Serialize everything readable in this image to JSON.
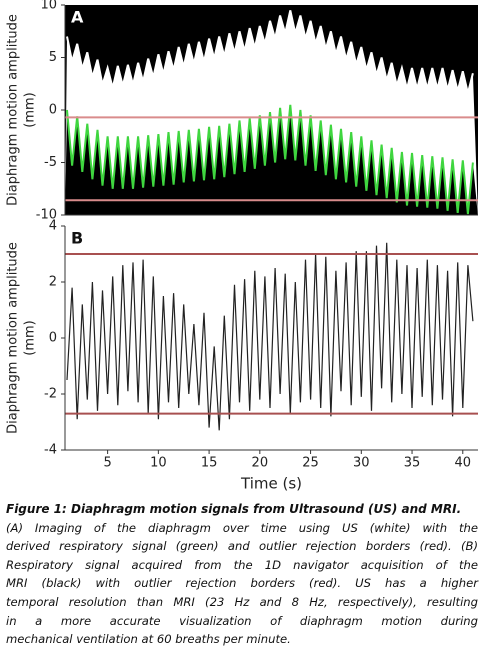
{
  "chart_data": [
    {
      "type": "line",
      "panel_label": "A",
      "ylabel": [
        "Diaphragm motion amplitude",
        "(mm)"
      ],
      "background": "#000000",
      "x": [
        1,
        1.5,
        2,
        2.5,
        3,
        3.5,
        4,
        4.5,
        5,
        5.5,
        6,
        6.5,
        7,
        7.5,
        8,
        8.5,
        9,
        9.5,
        10,
        10.5,
        11,
        11.5,
        12,
        12.5,
        13,
        13.5,
        14,
        14.5,
        15,
        15.5,
        16,
        16.5,
        17,
        17.5,
        18,
        18.5,
        19,
        19.5,
        20,
        20.5,
        21,
        21.5,
        22,
        22.5,
        23,
        23.5,
        24,
        24.5,
        25,
        25.5,
        26,
        26.5,
        27,
        27.5,
        28,
        28.5,
        29,
        29.5,
        30,
        30.5,
        31,
        31.5,
        32,
        32.5,
        33,
        33.5,
        34,
        34.5,
        35,
        35.5,
        36,
        36.5,
        37,
        37.5,
        38,
        38.5,
        39,
        39.5,
        40,
        40.5,
        41
      ],
      "series": [
        {
          "color": "#ffffff",
          "fill": "#ffffff",
          "values": [
            7,
            4.6,
            6.3,
            3.9,
            5.5,
            3.1,
            4.8,
            2.4,
            4,
            2.1,
            4.2,
            2.3,
            4.3,
            2.4,
            4.5,
            2.7,
            4.9,
            3.1,
            5.3,
            3.4,
            5.6,
            3.8,
            6,
            4.1,
            6.3,
            4.4,
            6.5,
            4.6,
            6.8,
            4.9,
            7,
            5.1,
            7.3,
            5.4,
            7.5,
            5.6,
            7.8,
            5.9,
            8,
            6.3,
            8.5,
            6.8,
            9,
            7.3,
            9.5,
            7.3,
            9,
            6.8,
            8.5,
            6.3,
            8,
            5.8,
            7.5,
            5.3,
            7,
            4.8,
            6.5,
            4.3,
            6,
            3.8,
            5.5,
            3.3,
            5,
            2.8,
            4.5,
            2.3,
            4,
            2,
            4,
            2,
            4,
            2,
            4,
            2,
            4,
            1.9,
            3.8,
            1.8,
            3.7,
            1.6,
            3.5
          ]
        },
        {
          "color": "#3fd63f",
          "fill": "#000000",
          "values": [
            0,
            -5.3,
            -0.6,
            -5.9,
            -1.3,
            -6.6,
            -1.9,
            -7.2,
            -2.5,
            -7.5,
            -2.5,
            -7.5,
            -2.5,
            -7.5,
            -2.5,
            -7.4,
            -2.4,
            -7.3,
            -2.3,
            -7.2,
            -2.1,
            -7.1,
            -2,
            -6.9,
            -1.9,
            -6.8,
            -1.8,
            -6.7,
            -1.6,
            -6.6,
            -1.5,
            -6.4,
            -1.3,
            -6.1,
            -1,
            -5.9,
            -0.8,
            -5.6,
            -0.5,
            -5.3,
            -0.2,
            -5,
            0.2,
            -4.7,
            0.5,
            -4.8,
            0,
            -5.3,
            -0.5,
            -5.8,
            -1,
            -6.2,
            -1.4,
            -6.6,
            -1.8,
            -6.9,
            -2.1,
            -7.3,
            -2.5,
            -7.7,
            -2.9,
            -8.1,
            -3.3,
            -8.4,
            -3.6,
            -8.8,
            -4,
            -9.1,
            -4.1,
            -9.2,
            -4.3,
            -9.3,
            -4.4,
            -9.4,
            -4.5,
            -9.6,
            -4.7,
            -9.8,
            -4.8,
            -9.9,
            -5
          ]
        }
      ],
      "hlines": {
        "values": [
          -0.7,
          -8.6
        ],
        "color": "#d98c8c"
      },
      "xlim": [
        0.8,
        41.5
      ],
      "ylim": [
        -10,
        10
      ],
      "yticks": [
        10,
        5,
        0,
        -5,
        -10
      ]
    },
    {
      "type": "line",
      "panel_label": "B",
      "ylabel": [
        "Diaphragm motion amplitude",
        "(mm)"
      ],
      "xlabel": "Time (s)",
      "x": [
        1,
        1.5,
        2,
        2.5,
        3,
        3.5,
        4,
        4.5,
        5,
        5.5,
        6,
        6.5,
        7,
        7.5,
        8,
        8.5,
        9,
        9.5,
        10,
        10.5,
        11,
        11.5,
        12,
        12.5,
        13,
        13.5,
        14,
        14.5,
        15,
        15.5,
        16,
        16.5,
        17,
        17.5,
        18,
        18.5,
        19,
        19.5,
        20,
        20.5,
        21,
        21.5,
        22,
        22.5,
        23,
        23.5,
        24,
        24.5,
        25,
        25.5,
        26,
        26.5,
        27,
        27.5,
        28,
        28.5,
        29,
        29.5,
        30,
        30.5,
        31,
        31.5,
        32,
        32.5,
        33,
        33.5,
        34,
        34.5,
        35,
        35.5,
        36,
        36.5,
        37,
        37.5,
        38,
        38.5,
        39,
        39.5,
        40,
        40.5,
        41
      ],
      "series": [
        {
          "color": "#222222",
          "values": [
            -1.5,
            1.8,
            -2.9,
            1.2,
            -2.2,
            2.0,
            -2.6,
            1.7,
            -2.0,
            2.2,
            -2.4,
            2.6,
            -1.9,
            2.7,
            -2.3,
            2.8,
            -2.7,
            2.2,
            -2.9,
            1.5,
            -2.3,
            1.6,
            -2.5,
            1.2,
            -2.0,
            0.5,
            -2.4,
            0.9,
            -3.2,
            -0.3,
            -3.3,
            0.8,
            -2.9,
            1.9,
            -2.3,
            2.1,
            -2.6,
            2.4,
            -2.2,
            2.2,
            -2.5,
            2.5,
            -2.0,
            2.3,
            -2.7,
            2.0,
            -2.3,
            2.8,
            -2.2,
            3.0,
            -2.5,
            2.9,
            -2.8,
            2.4,
            -1.9,
            2.7,
            -2.4,
            3.1,
            -2.1,
            3.1,
            -2.6,
            3.3,
            -1.8,
            3.4,
            -2.3,
            2.8,
            -2.0,
            2.6,
            -2.5,
            2.5,
            -2.1,
            2.8,
            -2.4,
            2.6,
            -2.2,
            2.4,
            -2.8,
            2.7,
            -2.5,
            2.6,
            0.6
          ]
        }
      ],
      "hlines": {
        "values": [
          3.0,
          -2.7
        ],
        "color": "#a85050"
      },
      "xlim": [
        0.8,
        41.5
      ],
      "xticks": [
        5,
        10,
        15,
        20,
        25,
        30,
        35,
        40
      ],
      "ylim": [
        -4,
        4
      ],
      "yticks": [
        4,
        2,
        0,
        -2,
        -4
      ]
    }
  ],
  "caption": {
    "title": "Figure 1: Diaphragm motion signals from Ultrasound (US) and MRI.",
    "lines": [
      "(A) Imaging of the diaphragm over time using US (white) with the",
      "derived respiratory signal (green) and outlier rejection borders (red). (B)",
      "Respiratory signal acquired from the 1D navigator acquisition of the",
      "MRI (black) with outlier rejection borders (red). US has a higher",
      "temporal resolution than MRI (23 Hz and 8 Hz, respectively), resulting",
      "in a more accurate visualization of diaphragm motion during",
      "mechanical ventilation at 60 breaths per minute."
    ]
  }
}
